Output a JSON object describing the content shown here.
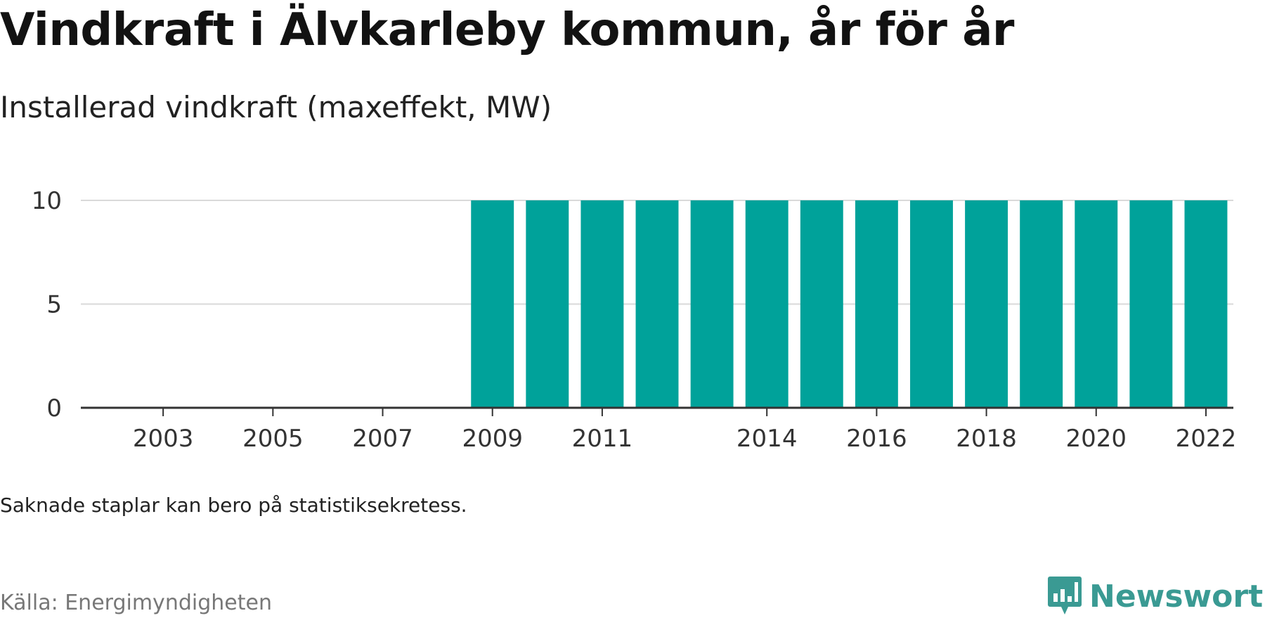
{
  "title": "Vindkraft i Älvkarleby kommun, år för år",
  "subtitle": "Installerad vindkraft (maxeffekt, MW)",
  "note": "Saknade staplar kan bero på statistiksekretess.",
  "source": "Källa: Energimyndigheten",
  "brand": {
    "name": "Newsworthy",
    "logo_icon": "bar-chart-speech-bubble-icon",
    "color": "#3a9a93"
  },
  "chart_data": {
    "type": "bar",
    "categories": [
      "2002",
      "2003",
      "2004",
      "2005",
      "2006",
      "2007",
      "2008",
      "2009",
      "2010",
      "2011",
      "2012",
      "2013",
      "2014",
      "2015",
      "2016",
      "2017",
      "2018",
      "2019",
      "2020",
      "2021",
      "2022"
    ],
    "values": [
      null,
      null,
      null,
      null,
      null,
      null,
      null,
      10,
      10,
      10,
      10,
      10,
      10,
      10,
      10,
      10,
      10,
      10,
      10,
      10,
      10
    ],
    "x_tick_labels": [
      "2003",
      "2005",
      "2007",
      "2009",
      "2011",
      "2014",
      "2016",
      "2018",
      "2020",
      "2022"
    ],
    "y_ticks": [
      0,
      5,
      10
    ],
    "ylim": [
      0,
      10
    ],
    "bar_color": "#00a29a",
    "grid": true
  }
}
